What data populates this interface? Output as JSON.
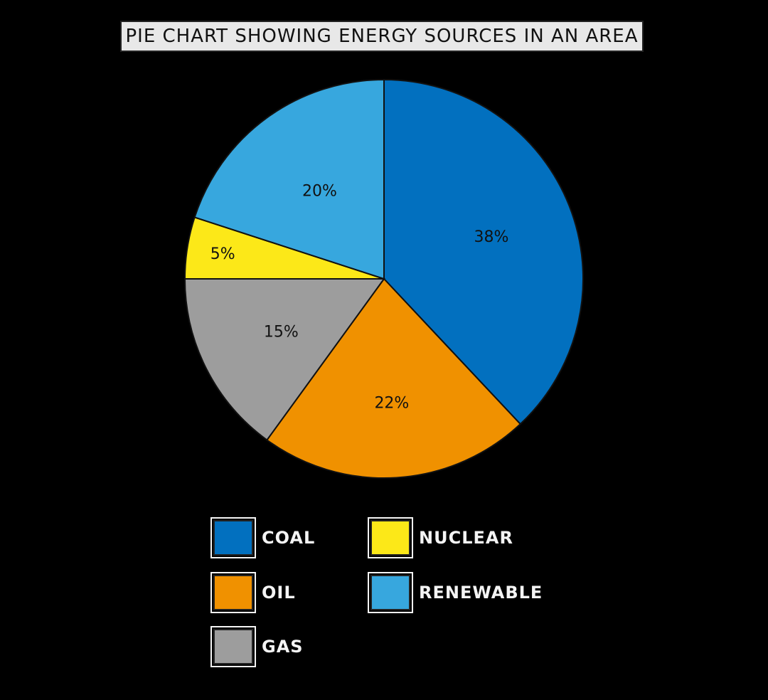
{
  "title": "PIE CHART SHOWING ENERGY SOURCES IN AN AREA",
  "chart_data": {
    "type": "pie",
    "title": "PIE CHART SHOWING ENERGY SOURCES IN AN AREA",
    "categories": [
      "COAL",
      "OIL",
      "GAS",
      "NUCLEAR",
      "RENEWABLE"
    ],
    "values": [
      38,
      22,
      15,
      5,
      20
    ],
    "unit": "%",
    "colors": [
      "#0270bf",
      "#f09100",
      "#9d9d9d",
      "#fce818",
      "#37a7de"
    ],
    "start_angle": "12 o'clock",
    "direction": "clockwise",
    "data_labels": [
      "38%",
      "22%",
      "15%",
      "5%",
      "20%"
    ],
    "legend_position": "bottom"
  },
  "slices": [
    {
      "name": "COAL",
      "value": 38,
      "label": "38%",
      "color": "#0270bf"
    },
    {
      "name": "OIL",
      "value": 22,
      "label": "22%",
      "color": "#f09100"
    },
    {
      "name": "GAS",
      "value": 15,
      "label": "15%",
      "color": "#9d9d9d"
    },
    {
      "name": "NUCLEAR",
      "value": 5,
      "label": "5%",
      "color": "#fce818"
    },
    {
      "name": "RENEWABLE",
      "value": 20,
      "label": "20%",
      "color": "#37a7de"
    }
  ],
  "legend": [
    {
      "label": "COAL",
      "color": "#0270bf"
    },
    {
      "label": "NUCLEAR",
      "color": "#fce818"
    },
    {
      "label": "OIL",
      "color": "#f09100"
    },
    {
      "label": "RENEWABLE",
      "color": "#37a7de"
    },
    {
      "label": "GAS",
      "color": "#9d9d9d"
    }
  ]
}
